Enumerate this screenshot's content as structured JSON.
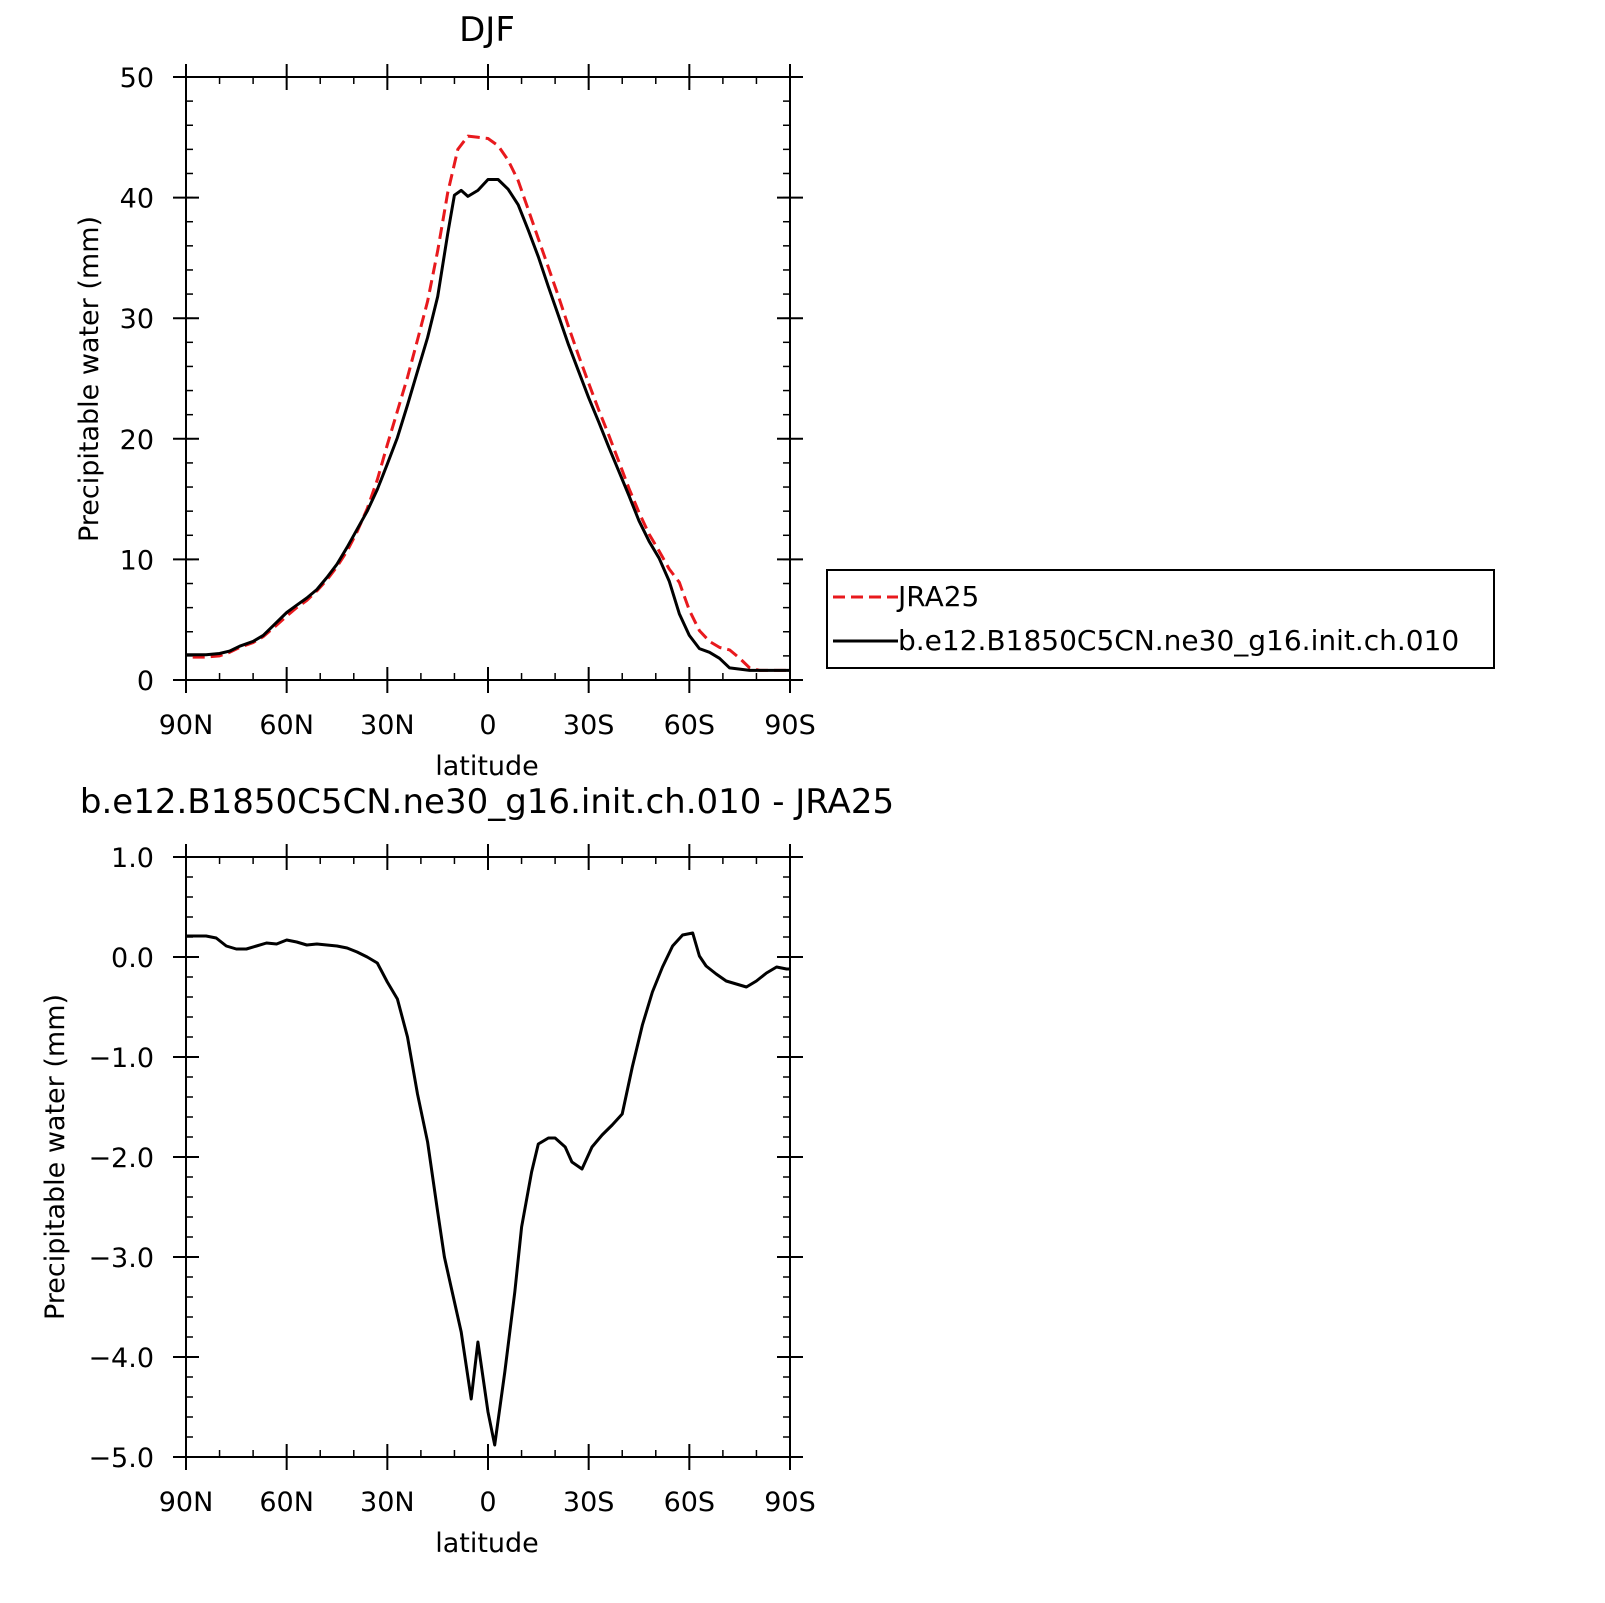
{
  "chart_data": [
    {
      "type": "line",
      "title": "DJF",
      "xlabel": "latitude",
      "ylabel": "Precipitable water (mm)",
      "xlim": [
        90,
        -90
      ],
      "ylim": [
        0,
        50
      ],
      "x_tick_values": [
        90,
        60,
        30,
        0,
        -30,
        -60,
        -90
      ],
      "x_tick_labels": [
        "90N",
        "60N",
        "30N",
        "0",
        "30S",
        "60S",
        "90S"
      ],
      "y_tick_values": [
        0,
        10,
        20,
        30,
        40,
        50
      ],
      "y_tick_labels": [
        "0",
        "10",
        "20",
        "30",
        "40",
        "50"
      ],
      "grid": false,
      "legend": {
        "placement": "right",
        "entries": [
          "JRA25",
          "b.e12.B1850C5CN.ne30_g16.init.ch.010"
        ]
      },
      "series": [
        {
          "name": "JRA25",
          "color": "#e8191d",
          "dash": "dashed",
          "x": [
            88,
            84,
            80,
            77,
            74,
            70,
            67,
            64,
            60,
            57,
            54,
            51,
            48,
            45,
            42,
            39,
            36,
            33,
            30,
            27,
            24,
            21,
            18,
            15,
            12,
            9,
            6,
            3,
            0,
            -3,
            -6,
            -9,
            -12,
            -15,
            -18,
            -21,
            -24,
            -27,
            -30,
            -33,
            -36,
            -39,
            -42,
            -45,
            -48,
            -51,
            -54,
            -57,
            -60,
            -63,
            -66,
            -69,
            -72,
            -75,
            -78,
            -81,
            -84,
            -87,
            -90
          ],
          "y": [
            1.9,
            1.9,
            2.0,
            2.3,
            2.7,
            3.1,
            3.6,
            4.3,
            5.3,
            6.0,
            6.6,
            7.4,
            8.3,
            9.4,
            10.7,
            12.3,
            14.2,
            16.6,
            19.5,
            22.3,
            25.1,
            28.2,
            31.4,
            35.6,
            40.4,
            44.0,
            45.1,
            45.0,
            44.9,
            44.3,
            43.1,
            41.4,
            39.0,
            36.6,
            34.2,
            31.8,
            29.3,
            26.9,
            24.6,
            22.4,
            20.3,
            18.1,
            15.9,
            13.9,
            12.1,
            10.7,
            9.2,
            8.1,
            5.8,
            4.1,
            3.2,
            2.7,
            2.5,
            1.8,
            1.0,
            0.8,
            0.8,
            0.8,
            0.8
          ]
        },
        {
          "name": "b.e12.B1850C5CN.ne30_g16.init.ch.010",
          "color": "#000000",
          "dash": "solid",
          "x": [
            90,
            87,
            84,
            80,
            77,
            74,
            70,
            67,
            64,
            60,
            57,
            54,
            51,
            48,
            45,
            42,
            39,
            36,
            33,
            30,
            27,
            24,
            21,
            18,
            15,
            12,
            10,
            8,
            6,
            3,
            0,
            -3,
            -6,
            -9,
            -12,
            -15,
            -18,
            -21,
            -24,
            -27,
            -30,
            -33,
            -36,
            -39,
            -42,
            -45,
            -48,
            -51,
            -54,
            -57,
            -60,
            -63,
            -66,
            -69,
            -72,
            -75,
            -78,
            -81,
            -84,
            -87,
            -90
          ],
          "y": [
            2.1,
            2.1,
            2.1,
            2.2,
            2.4,
            2.8,
            3.2,
            3.7,
            4.5,
            5.6,
            6.2,
            6.8,
            7.5,
            8.5,
            9.6,
            11.0,
            12.5,
            14.0,
            15.8,
            17.9,
            20.1,
            22.8,
            25.6,
            28.4,
            31.8,
            37.0,
            40.2,
            40.6,
            40.1,
            40.6,
            41.5,
            41.5,
            40.7,
            39.4,
            37.3,
            35.1,
            32.6,
            30.2,
            27.8,
            25.6,
            23.4,
            21.4,
            19.3,
            17.3,
            15.3,
            13.2,
            11.5,
            10.1,
            8.2,
            5.5,
            3.7,
            2.6,
            2.3,
            1.8,
            1.0,
            0.9,
            0.8,
            0.8,
            0.8,
            0.8,
            0.8
          ]
        }
      ]
    },
    {
      "type": "line",
      "title": "b.e12.B1850C5CN.ne30_g16.init.ch.010 - JRA25",
      "xlabel": "latitude",
      "ylabel": "Precipitable water (mm)",
      "xlim": [
        90,
        -90
      ],
      "ylim": [
        -5.0,
        1.0
      ],
      "x_tick_values": [
        90,
        60,
        30,
        0,
        -30,
        -60,
        -90
      ],
      "x_tick_labels": [
        "90N",
        "60N",
        "30N",
        "0",
        "30S",
        "60S",
        "90S"
      ],
      "y_tick_values": [
        1.0,
        0.0,
        -1.0,
        -2.0,
        -3.0,
        -4.0,
        -5.0
      ],
      "y_tick_labels": [
        "1.0",
        "0.0",
        "−1.0",
        "−2.0",
        "−3.0",
        "−4.0",
        "−5.0"
      ],
      "grid": false,
      "series": [
        {
          "color": "#000000",
          "dash": "solid",
          "x": [
            90,
            87,
            84,
            81,
            78,
            75,
            72,
            69,
            66,
            63,
            60,
            57,
            54,
            51,
            48,
            45,
            42,
            39,
            36,
            33,
            30,
            27,
            24,
            21,
            18,
            15,
            13,
            11,
            8,
            5,
            3,
            0,
            -2,
            -5,
            -8,
            -10,
            -13,
            -15,
            -18,
            -20,
            -23,
            -25,
            -28,
            -31,
            -34,
            -37,
            -40,
            -43,
            -46,
            -49,
            -52,
            -55,
            -58,
            -61,
            -63,
            -65,
            -68,
            -71,
            -74,
            -77,
            -80,
            -83,
            -86,
            -89,
            -90
          ],
          "y": [
            0.21,
            0.21,
            0.21,
            0.19,
            0.11,
            0.08,
            0.08,
            0.11,
            0.14,
            0.13,
            0.17,
            0.15,
            0.12,
            0.13,
            0.12,
            0.11,
            0.09,
            0.05,
            0.0,
            -0.06,
            -0.25,
            -0.42,
            -0.8,
            -1.37,
            -1.85,
            -2.55,
            -3.0,
            -3.3,
            -3.75,
            -4.42,
            -3.85,
            -4.55,
            -4.88,
            -4.15,
            -3.35,
            -2.7,
            -2.15,
            -1.87,
            -1.81,
            -1.81,
            -1.9,
            -2.05,
            -2.12,
            -1.9,
            -1.78,
            -1.68,
            -1.57,
            -1.1,
            -0.68,
            -0.35,
            -0.1,
            0.11,
            0.22,
            0.24,
            0.01,
            -0.09,
            -0.17,
            -0.24,
            -0.27,
            -0.3,
            -0.24,
            -0.16,
            -0.1,
            -0.12,
            -0.12
          ]
        }
      ]
    }
  ]
}
